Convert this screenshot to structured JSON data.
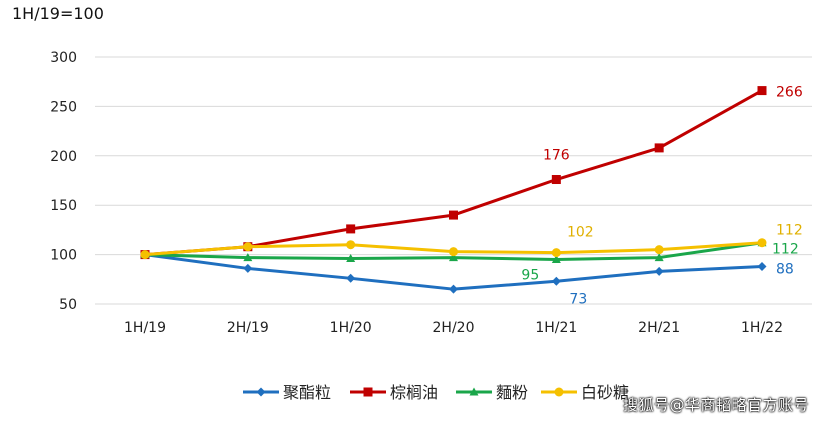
{
  "unit_label": "1H/19=100",
  "watermark": "搜狐号@华商韬略官方账号",
  "chart_data": {
    "type": "line",
    "title": "",
    "xlabel": "",
    "ylabel": "",
    "categories": [
      "1H/19",
      "2H/19",
      "1H/20",
      "2H/20",
      "1H/21",
      "2H/21",
      "1H/22"
    ],
    "ylim": [
      50,
      300
    ],
    "yticks": [
      50,
      100,
      150,
      200,
      250,
      300
    ],
    "grid": true,
    "legend_position": "bottom",
    "series": [
      {
        "name": "聚酯粒",
        "color": "#1f6fbf",
        "marker": "diamond",
        "values": [
          100,
          86,
          76,
          65,
          73,
          83,
          88
        ]
      },
      {
        "name": "棕榈油",
        "color": "#c00000",
        "marker": "square",
        "values": [
          100,
          108,
          126,
          140,
          176,
          208,
          266
        ]
      },
      {
        "name": "麵粉",
        "color": "#1aa64a",
        "marker": "triangle",
        "values": [
          100,
          97,
          96,
          97,
          95,
          97,
          112
        ]
      },
      {
        "name": "白砂糖",
        "color": "#f5c000",
        "marker": "circle",
        "values": [
          100,
          108,
          110,
          103,
          102,
          105,
          112
        ]
      }
    ],
    "annotations": [
      {
        "series": "棕榈油",
        "category": "1H/21",
        "text": "176",
        "color": "#c00000"
      },
      {
        "series": "棕榈油",
        "category": "1H/22",
        "text": "266",
        "color": "#c00000"
      },
      {
        "series": "白砂糖",
        "category": "1H/21",
        "text": "102",
        "color": "#e0b000"
      },
      {
        "series": "白砂糖",
        "category": "1H/22",
        "text": "112",
        "color": "#e0b000"
      },
      {
        "series": "麵粉",
        "category": "1H/21",
        "text": "95",
        "color": "#1aa64a"
      },
      {
        "series": "麵粉",
        "category": "1H/22",
        "text": "112",
        "color": "#1aa64a"
      },
      {
        "series": "聚酯粒",
        "category": "1H/21",
        "text": "73",
        "color": "#1f6fbf"
      },
      {
        "series": "聚酯粒",
        "category": "1H/22",
        "text": "88",
        "color": "#1f6fbf"
      }
    ]
  }
}
